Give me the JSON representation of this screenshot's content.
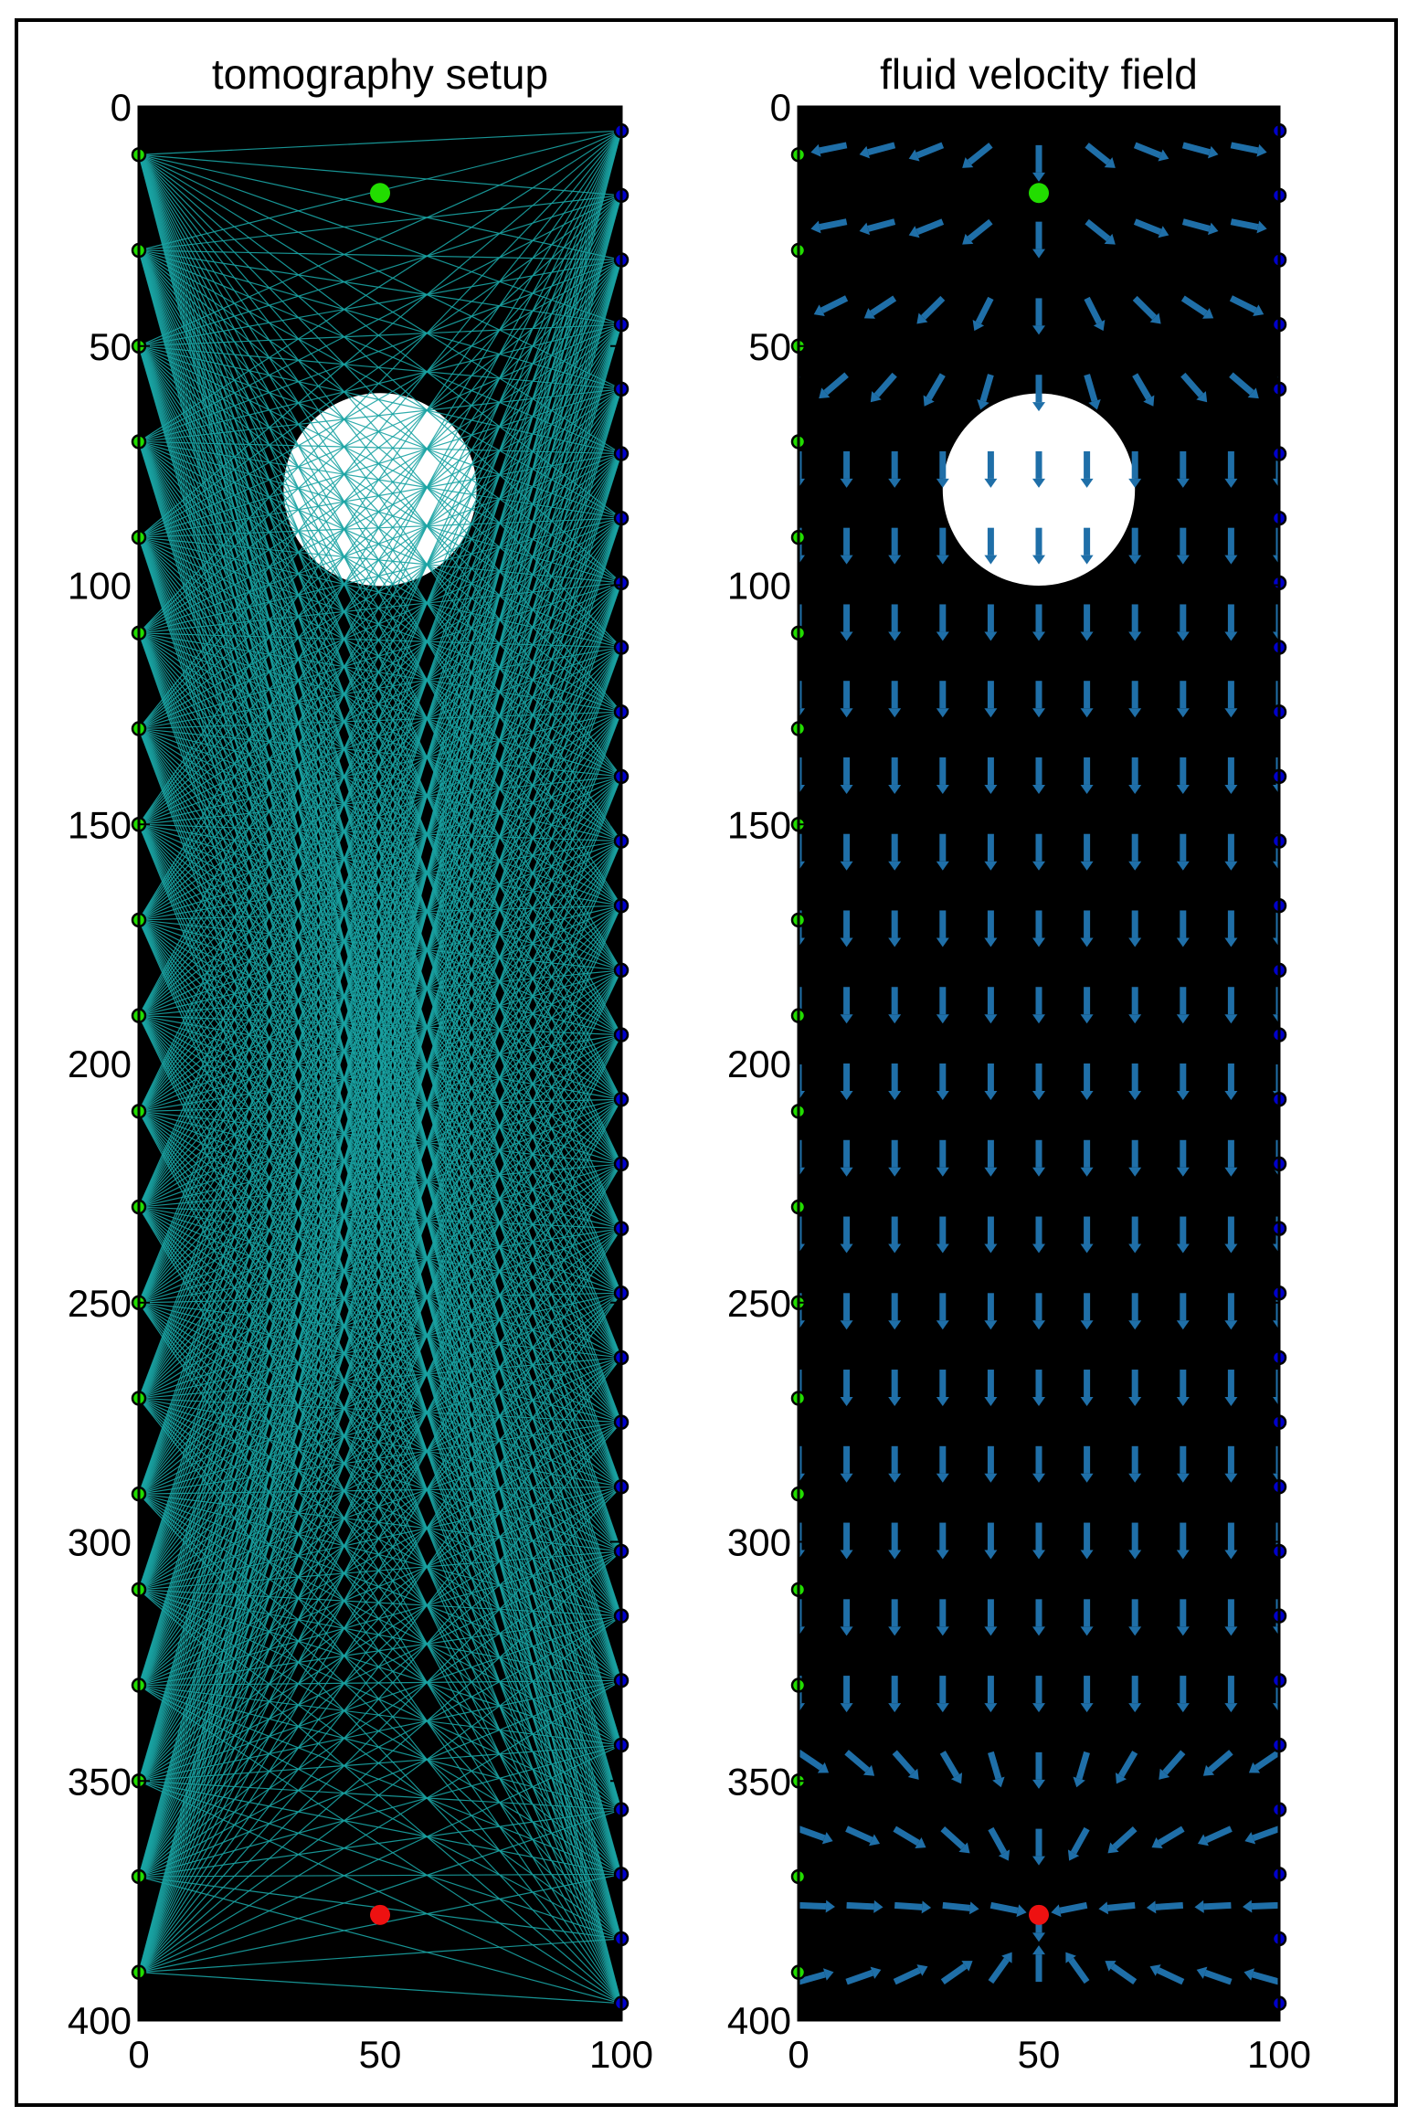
{
  "chart_data": [
    {
      "type": "scatter",
      "title": "tomography setup",
      "xlim": [
        0,
        100
      ],
      "ylim": [
        0,
        400
      ],
      "y_reversed": true,
      "xticks": [
        0,
        50,
        100
      ],
      "yticks": [
        0,
        50,
        100,
        150,
        200,
        250,
        300,
        350,
        400
      ],
      "background_color": "#000000",
      "ray_color": "#1aa3a3",
      "obstacle": {
        "shape": "disc",
        "center": [
          50,
          80
        ],
        "radius": 20,
        "color": "#ffffff"
      },
      "sources": {
        "x": 0,
        "y": [
          10,
          30,
          50,
          70,
          90,
          110,
          130,
          150,
          170,
          190,
          210,
          230,
          250,
          270,
          290,
          310,
          330,
          350,
          370,
          390
        ],
        "color": "#22dd00"
      },
      "receivers": {
        "x": 100,
        "y": [
          5,
          18.5,
          32,
          45.5,
          59,
          72.5,
          86,
          99.5,
          113,
          126.5,
          140,
          153.5,
          167,
          180.5,
          194,
          207.5,
          221,
          234.5,
          248,
          261.5,
          275,
          288.5,
          302,
          315.5,
          329,
          342.5,
          356,
          369.5,
          383,
          396.5
        ],
        "color": "#0000cc"
      },
      "inlet": {
        "x": 50,
        "y": 18,
        "color": "#22dd00"
      },
      "outlet": {
        "x": 50,
        "y": 378,
        "color": "#ee1111"
      }
    },
    {
      "type": "quiver",
      "title": "fluid velocity field",
      "xlim": [
        0,
        100
      ],
      "ylim": [
        0,
        400
      ],
      "y_reversed": true,
      "xticks": [
        0,
        50,
        100
      ],
      "yticks": [
        0,
        50,
        100,
        150,
        200,
        250,
        300,
        350,
        400
      ],
      "background_color": "#000000",
      "arrow_color": "#1f6fa8",
      "grid_x": [
        0,
        10,
        20,
        30,
        40,
        50,
        60,
        70,
        80,
        90,
        100
      ],
      "grid_y_step": 16,
      "obstacle": {
        "shape": "disc",
        "center": [
          50,
          80
        ],
        "radius": 20,
        "color": "#ffffff"
      },
      "sources": {
        "x": 0,
        "y": [
          10,
          30,
          50,
          70,
          90,
          110,
          130,
          150,
          170,
          190,
          210,
          230,
          250,
          270,
          290,
          310,
          330,
          350,
          370,
          390
        ],
        "color": "#22dd00"
      },
      "receivers": {
        "x": 100,
        "y": [
          5,
          18.5,
          32,
          45.5,
          59,
          72.5,
          86,
          99.5,
          113,
          126.5,
          140,
          153.5,
          167,
          180.5,
          194,
          207.5,
          221,
          234.5,
          248,
          261.5,
          275,
          288.5,
          302,
          315.5,
          329,
          342.5,
          356,
          369.5,
          383,
          396.5
        ],
        "color": "#0000cc"
      },
      "inlet": {
        "x": 50,
        "y": 18,
        "color": "#22dd00"
      },
      "outlet": {
        "x": 50,
        "y": 378,
        "color": "#ee1111"
      }
    }
  ]
}
